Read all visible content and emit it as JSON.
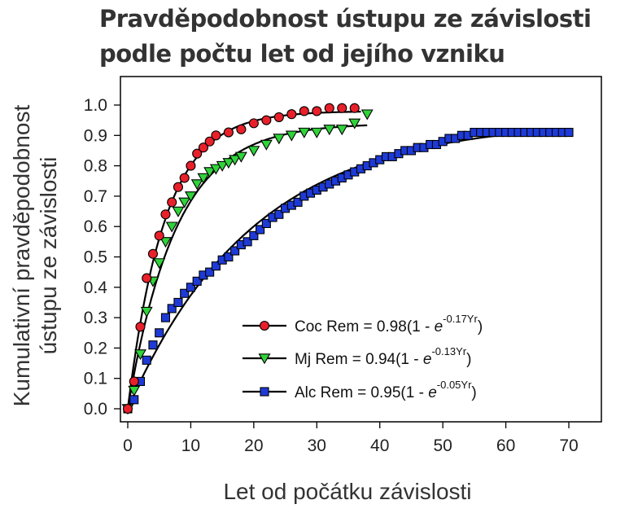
{
  "title_lines": [
    "Pravděpodobnost ústupu ze závislosti",
    "podle počtu let od jejího vzniku"
  ],
  "chart_data": {
    "type": "scatter",
    "title": "Pravděpodobnost ústupu ze závislosti podle počtu let od jejího vzniku",
    "xlabel": "Let od počátku závislosti",
    "ylabel_lines": [
      "Kumulativní pravděpodobnost",
      "ústupu ze závislosti"
    ],
    "xlim": [
      0,
      70
    ],
    "ylim": [
      0,
      1.0
    ],
    "x_ticks": [
      "0",
      "10",
      "20",
      "30",
      "40",
      "50",
      "60",
      "70"
    ],
    "y_ticks": [
      "0.0",
      "0.1",
      "0.2",
      "0.3",
      "0.4",
      "0.5",
      "0.6",
      "0.7",
      "0.8",
      "0.9",
      "1.0"
    ],
    "grid": false,
    "legend_position": "bottom-right",
    "series": [
      {
        "name": "Coc",
        "legend": {
          "main": "Coc Rem = 0.98(1 - ",
          "e": "e",
          "sup": "-0.17Yr",
          "close": ")"
        },
        "marker": "circle",
        "color": "#e8202a",
        "fit": {
          "a": 0.98,
          "k": 0.17,
          "x_max": 37
        },
        "x": [
          0,
          1,
          2,
          3,
          4,
          5,
          6,
          7,
          8,
          9,
          10,
          11,
          12,
          13,
          14,
          16,
          18,
          20,
          22,
          24,
          26,
          28,
          30,
          32,
          34,
          36
        ],
        "y": [
          0.0,
          0.09,
          0.27,
          0.43,
          0.51,
          0.57,
          0.64,
          0.68,
          0.73,
          0.76,
          0.8,
          0.84,
          0.86,
          0.88,
          0.9,
          0.91,
          0.92,
          0.94,
          0.95,
          0.96,
          0.97,
          0.98,
          0.98,
          0.99,
          0.99,
          0.99
        ]
      },
      {
        "name": "Mj",
        "legend": {
          "main": "Mj Rem = 0.94(1 - ",
          "e": "e",
          "sup": "-0.13Yr",
          "close": ")"
        },
        "marker": "triangle-down",
        "color": "#2fd33a",
        "fit": {
          "a": 0.94,
          "k": 0.13,
          "x_max": 38
        },
        "x": [
          0,
          1,
          2,
          3,
          4,
          5,
          6,
          7,
          8,
          9,
          10,
          11,
          12,
          13,
          14,
          15,
          16,
          17,
          18,
          20,
          22,
          24,
          26,
          28,
          30,
          32,
          34,
          36,
          38
        ],
        "y": [
          0.0,
          0.06,
          0.18,
          0.32,
          0.42,
          0.48,
          0.55,
          0.6,
          0.65,
          0.68,
          0.7,
          0.74,
          0.76,
          0.78,
          0.79,
          0.8,
          0.81,
          0.82,
          0.83,
          0.85,
          0.87,
          0.89,
          0.9,
          0.91,
          0.91,
          0.92,
          0.92,
          0.94,
          0.97
        ]
      },
      {
        "name": "Alc",
        "legend": {
          "main": "Alc Rem = 0.95(1 - ",
          "e": "e",
          "sup": "-0.05Yr",
          "close": ")"
        },
        "marker": "square",
        "color": "#1e3ad6",
        "fit": {
          "a": 0.95,
          "k": 0.05,
          "x_max": 70
        },
        "x": [
          0,
          1,
          2,
          3,
          4,
          5,
          6,
          7,
          8,
          9,
          10,
          11,
          12,
          13,
          14,
          15,
          16,
          17,
          18,
          19,
          20,
          21,
          22,
          23,
          24,
          25,
          26,
          27,
          28,
          29,
          30,
          31,
          32,
          33,
          34,
          35,
          36,
          37,
          38,
          39,
          40,
          41,
          42,
          43,
          44,
          45,
          46,
          47,
          48,
          49,
          50,
          51,
          52,
          53,
          54,
          55,
          56,
          57,
          58,
          59,
          60,
          61,
          62,
          63,
          64,
          65,
          66,
          67,
          68,
          69,
          70
        ],
        "y": [
          0.0,
          0.03,
          0.09,
          0.16,
          0.21,
          0.25,
          0.3,
          0.33,
          0.35,
          0.38,
          0.4,
          0.42,
          0.44,
          0.45,
          0.47,
          0.49,
          0.5,
          0.52,
          0.54,
          0.55,
          0.57,
          0.59,
          0.61,
          0.63,
          0.64,
          0.66,
          0.67,
          0.68,
          0.7,
          0.71,
          0.72,
          0.73,
          0.74,
          0.75,
          0.76,
          0.77,
          0.78,
          0.79,
          0.8,
          0.81,
          0.82,
          0.83,
          0.83,
          0.84,
          0.85,
          0.85,
          0.86,
          0.86,
          0.87,
          0.87,
          0.88,
          0.89,
          0.89,
          0.9,
          0.9,
          0.91,
          0.91,
          0.91,
          0.91,
          0.91,
          0.91,
          0.91,
          0.91,
          0.91,
          0.91,
          0.91,
          0.91,
          0.91,
          0.91,
          0.91,
          0.91
        ]
      }
    ]
  }
}
